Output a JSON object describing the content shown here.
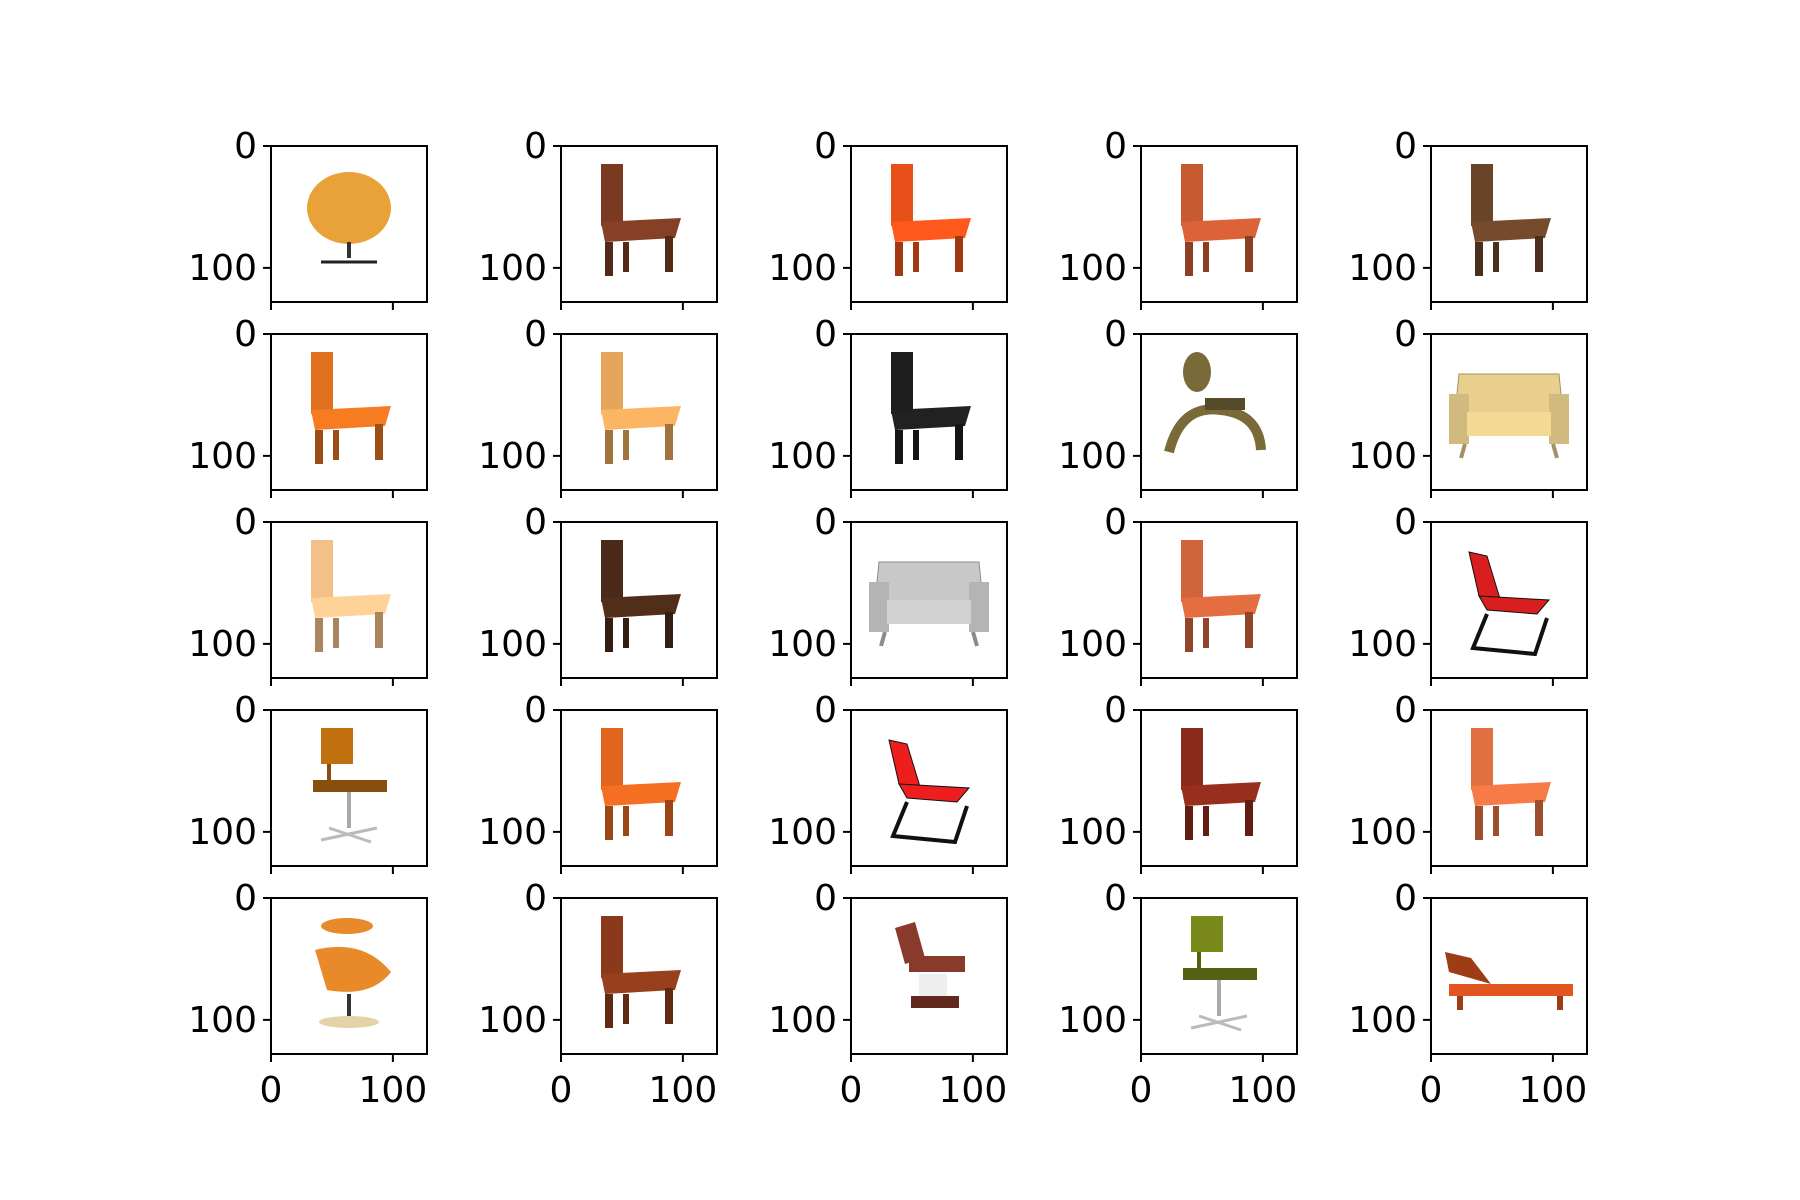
{
  "chart_data": {
    "type": "image_grid",
    "rows": 5,
    "cols": 5,
    "xlim": [
      0,
      128
    ],
    "ylim": [
      128,
      0
    ],
    "xticks": [
      0,
      100
    ],
    "yticks": [
      0,
      100
    ],
    "xtick_labels": [
      "0",
      "100"
    ],
    "ytick_labels": [
      "0",
      "100"
    ],
    "xticks_visible_bottom_row_only": true,
    "images": [
      {
        "icon": "egg-swivel-chair-icon",
        "color": "#e8a23a"
      },
      {
        "icon": "cantilever-wood-chair-icon",
        "color": "#7a3a22"
      },
      {
        "icon": "orange-side-chair-icon",
        "color": "#e8501a"
      },
      {
        "icon": "ladderback-wood-chair-icon",
        "color": "#c85a32"
      },
      {
        "icon": "blue-back-wood-chair-icon",
        "color": "#6a4428"
      },
      {
        "icon": "orange-wood-armchair-icon",
        "color": "#e0701e"
      },
      {
        "icon": "pine-box-chair-icon",
        "color": "#e5a55a"
      },
      {
        "icon": "white-frame-black-seat-chair-icon",
        "color": "#1e1e1e"
      },
      {
        "icon": "olive-sculptural-chair-icon",
        "color": "#7a6a3a"
      },
      {
        "icon": "cream-upholstered-armchair-icon",
        "color": "#e8cf8e"
      },
      {
        "icon": "peach-slat-back-chair-icon",
        "color": "#f3c089"
      },
      {
        "icon": "dark-wood-metal-leg-chair-icon",
        "color": "#4a2a18"
      },
      {
        "icon": "floral-club-armchair-icon",
        "color": "#c8c8c8"
      },
      {
        "icon": "ladderback-wood-chair-icon",
        "color": "#d0643a"
      },
      {
        "icon": "red-cantilever-chair-icon",
        "color": "#d81e1e"
      },
      {
        "icon": "office-swivel-chair-icon",
        "color": "#c0700e"
      },
      {
        "icon": "orange-arched-chair-icon",
        "color": "#e0641e"
      },
      {
        "icon": "red-mesh-cantilever-chair-icon",
        "color": "#ee1e1e"
      },
      {
        "icon": "dark-red-wood-chair-icon",
        "color": "#8a2a1a"
      },
      {
        "icon": "spindle-leg-chair-icon",
        "color": "#e07040"
      },
      {
        "icon": "ergonomic-lounge-chair-icon",
        "color": "#e88a2a"
      },
      {
        "icon": "mahogany-high-back-chair-icon",
        "color": "#8a3a1a"
      },
      {
        "icon": "barber-chair-icon",
        "color": "#8a3a2a"
      },
      {
        "icon": "olive-salon-chair-icon",
        "color": "#7a8a1a"
      },
      {
        "icon": "orange-sun-lounger-icon",
        "color": "#e0561e"
      }
    ]
  }
}
